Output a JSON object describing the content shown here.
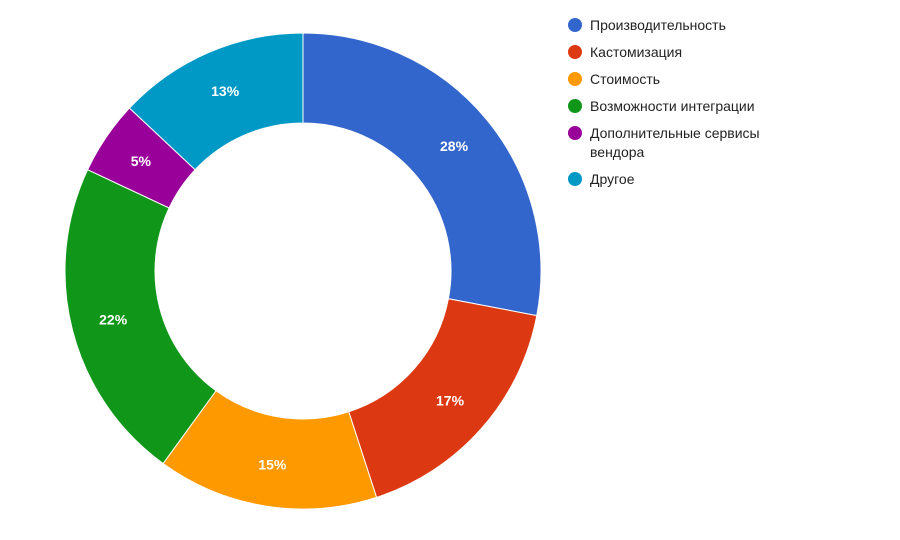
{
  "chart_data": {
    "type": "pie",
    "donut": true,
    "legend_position": "right",
    "categories": [
      "Производительность",
      "Кастомизация",
      "Стоимость",
      "Возможности интеграции",
      "Дополнительные сервисы вендора",
      "Другое"
    ],
    "values": [
      28,
      17,
      15,
      22,
      5,
      13
    ],
    "labels": [
      "28%",
      "17%",
      "15%",
      "22%",
      "5%",
      "13%"
    ],
    "colors": [
      "#3366cc",
      "#dc3912",
      "#ff9900",
      "#109618",
      "#990099",
      "#0099c6"
    ]
  }
}
